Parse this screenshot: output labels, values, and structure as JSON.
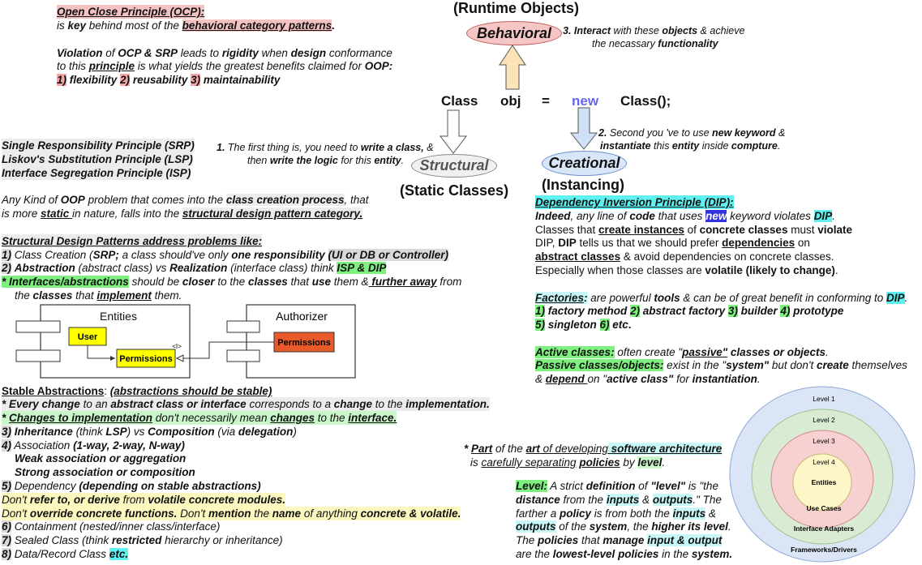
{
  "ocp": {
    "title": "Open Close Principle (OCP):",
    "line1": [
      "is ",
      "key",
      " behind most of the ",
      "behavioral category patterns",
      "."
    ],
    "line2": [
      "Violation",
      " of ",
      "OCP & SRP",
      " leads to ",
      "rigidity",
      " when ",
      "design",
      " conformance"
    ],
    "line3": [
      "to this ",
      "principle",
      " is what yields the greatest benefits claimed for ",
      "OOP:"
    ],
    "line4": [
      "1)",
      " flexibility ",
      "2)",
      " reusability ",
      "3)",
      "  maintainability"
    ]
  },
  "principles": {
    "srp": "Single Responsibility Principle (SRP)",
    "lsp": "Liskov's Substitution Principle  (LSP)",
    "isp": "Interface Segregation Principle  (ISP)"
  },
  "note1": {
    "line1": [
      "1.",
      " The first thing is, you need to ",
      "write a class,",
      " &"
    ],
    "line2": [
      "then ",
      "write the logic",
      " for this ",
      "entity",
      "."
    ]
  },
  "note2": {
    "line1": [
      "2.",
      " Second you 've to use ",
      "new keyword",
      " &"
    ],
    "line2": [
      "instantiate",
      " this ",
      "entity",
      " inside  ",
      "compture",
      "."
    ]
  },
  "note3": {
    "line1": [
      "3.",
      " ",
      "Interact",
      " with these ",
      "objects",
      " & achieve"
    ],
    "line2": [
      "the necassary ",
      "functionality"
    ]
  },
  "center": {
    "runtime_objects": "(Runtime Objects)",
    "behavioral": "Behavioral",
    "structural": "Structural",
    "creational": "Creational",
    "static_classes": "(Static Classes)",
    "instancing": "(Instancing)",
    "code": {
      "class": "Class",
      "obj": "obj",
      "eq": "=",
      "new": "new",
      "ctor": "Class();"
    }
  },
  "structural_intro": {
    "line1": [
      "Any Kind of ",
      "OOP",
      " problem that comes into the ",
      "class creation process",
      ", that"
    ],
    "line2": [
      "is more ",
      "static ",
      "in nature, falls into the ",
      "structural design pattern category."
    ]
  },
  "sdp": {
    "title": "Structural Design Patterns address problems like:",
    "l1": [
      "1)",
      " Class Creation (",
      "SRP;",
      " a class should've only ",
      "one responsibility",
      " ",
      "(UI or DB  or Controller)"
    ],
    "l2": [
      "2)",
      " ",
      "Abstraction",
      " (abstract class) vs ",
      "Realization",
      " (interface class) think ",
      "ISP & DIP"
    ],
    "l3": [
      "*  Interfaces/abstractions",
      " should be ",
      "closer",
      " to the ",
      "classes",
      " that ",
      "use",
      " them &",
      " further away",
      " from"
    ],
    "l4": [
      "the ",
      "classes",
      " that ",
      "implement",
      " them."
    ]
  },
  "entities_diagram": {
    "entities": "Entities",
    "user": "User",
    "permissions": "Permissions",
    "authorizer": "Authorizer",
    "auth_permissions": "Permissions",
    "interface_marker": "<I>"
  },
  "stable": {
    "title": [
      "Stable Abstractions",
      ": ",
      "(abstractions should be stable)"
    ],
    "l1": [
      "* Every ",
      "change",
      " to an ",
      "abstract class or interface",
      " corresponds to a ",
      "change",
      " to the ",
      "implementation."
    ],
    "l2": [
      "* ",
      "Changes to implementation",
      " don't necessarily mean ",
      "changes",
      " to the ",
      "interface."
    ],
    "l3": [
      "3)",
      " ",
      "Inheritance",
      " (think ",
      "LSP",
      ") vs ",
      "Composition",
      " (via ",
      "delegation",
      ")"
    ],
    "l4": [
      "4)",
      " Association ",
      "(1-way, 2-way, N-way)"
    ],
    "l4b": "Weak association or aggregation",
    "l4c": "Strong association or composition",
    "l5": [
      "5)",
      " Dependency ",
      "(depending on stable abstractions)"
    ],
    "l5a": [
      "Don't ",
      "refer to, or derive",
      " from ",
      "volatile concrete modules."
    ],
    "l5b": [
      "Don't ",
      "override concrete functions.",
      " Don't ",
      "mention",
      " the ",
      "name",
      " of anything ",
      "concrete & volatile."
    ],
    "l6": [
      "6)",
      " Containment (nested/inner class/interface)"
    ],
    "l7": [
      "7)",
      " Sealed Class (think ",
      "restricted",
      " hierarchy or inheritance)"
    ],
    "l8": [
      "8)",
      " Data/Record Class ",
      "etc."
    ]
  },
  "dip": {
    "title": "Dependency Inversion Principle (DIP):",
    "l1": [
      "Indeed",
      ", any line of ",
      "code",
      " that uses ",
      "new",
      " keyword violates ",
      "DIP",
      "."
    ],
    "l2": [
      "Classes that ",
      "create instances",
      " of ",
      "concrete classes",
      " must ",
      "violate"
    ],
    "l3": [
      "DIP, ",
      "DIP",
      " tells us that we should prefer ",
      "dependencies",
      " on"
    ],
    "l4": [
      "abstract classes",
      " & avoid dependencies on concrete classes."
    ],
    "l5": [
      "Especially when those classes are ",
      "volatile (likely to change)",
      "."
    ]
  },
  "factories": {
    "l1": [
      "Factories",
      ":",
      " are powerful ",
      "tools",
      " & can be of great benefit in conforming to ",
      "DIP",
      "."
    ],
    "l2": [
      "1)",
      " factory method ",
      "2)",
      " abstract factory ",
      "3)",
      " builder ",
      "4)",
      " prototype"
    ],
    "l3": [
      "5)",
      " singleton ",
      "6)",
      " etc",
      "."
    ]
  },
  "active": {
    "l1": [
      "Active classes:",
      " often create \"",
      "passive\"",
      " ",
      "classes or objects",
      "."
    ],
    "l2": [
      "Passive classes/objects:",
      " exist in the \"",
      "system\"",
      " but don't ",
      "create",
      " themselves"
    ],
    "l3": [
      "& ",
      "depend ",
      "on \"",
      "active class\"",
      " for ",
      "instantiation",
      "."
    ]
  },
  "arch": {
    "l1": [
      "* ",
      "Part",
      " of the ",
      "art",
      " of developing",
      " software architecture"
    ],
    "l2": [
      "is ",
      "carefully separating",
      " ",
      "policies",
      " by ",
      "level",
      "."
    ]
  },
  "level": {
    "l1": [
      "Level:",
      " A strict ",
      "definition",
      " of ",
      "\"level\"",
      " is  \"the"
    ],
    "l2": [
      "distance",
      " from the ",
      "inputs",
      " & ",
      "outputs",
      ".\"  The"
    ],
    "l3": [
      "farther a ",
      "policy",
      " is from both the ",
      "inputs",
      " &"
    ],
    "l4": [
      "outputs",
      " of the ",
      "system",
      ", the ",
      "higher its level",
      "."
    ],
    "l5": [
      "The ",
      "policies",
      " that ",
      "manage",
      " ",
      "input & output"
    ],
    "l6": [
      "are the ",
      "lowest-level policies",
      " in the ",
      "system."
    ]
  },
  "onion": {
    "level1": "Level 1",
    "level2": "Level 2",
    "level3": "Level 3",
    "level4": "Level 4",
    "entities": "Entities",
    "use_cases": "Use Cases",
    "interface_adapters": "Interface Adapters",
    "frameworks": "Frameworks/Drivers",
    "colors": {
      "outer": "#dbe5f6",
      "ring2": "#d9ecd3",
      "ring3": "#f7d1d1",
      "core": "#fdf6c9"
    }
  }
}
